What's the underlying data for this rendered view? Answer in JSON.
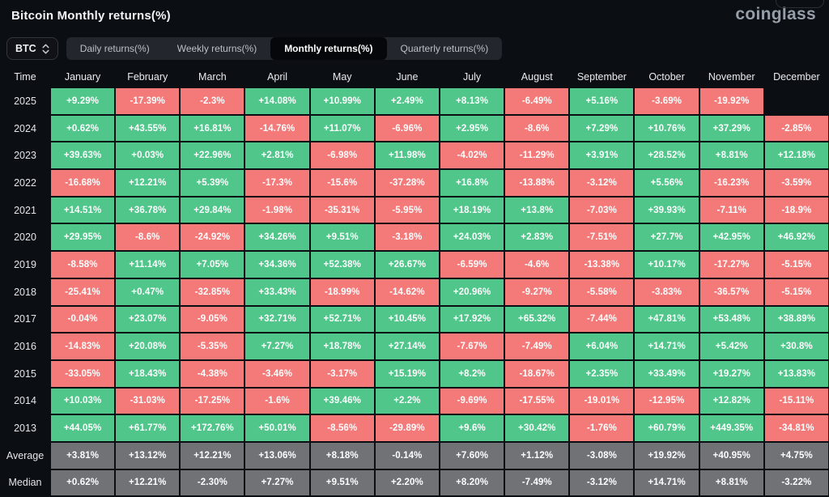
{
  "page": {
    "title": "Bitcoin Monthly returns(%)",
    "logo": "coinglass"
  },
  "controls": {
    "coin_selector": {
      "label": "BTC",
      "icon": "updown-chevron-icon"
    },
    "tabs": [
      {
        "label": "Daily returns(%)",
        "active": false
      },
      {
        "label": "Weekly returns(%)",
        "active": false
      },
      {
        "label": "Monthly returns(%)",
        "active": true
      },
      {
        "label": "Quarterly returns(%)",
        "active": false
      }
    ]
  },
  "colors": {
    "background": "#0b0e13",
    "positive": "#50c68a",
    "negative": "#f47a7a",
    "summary": "#707276"
  },
  "chart_data": {
    "type": "heatmap",
    "title": "Bitcoin Monthly returns(%)",
    "legend": "green cell = positive monthly return, red cell = negative monthly return, gray cell = summary row, blank = no data yet",
    "columns": [
      "Time",
      "January",
      "February",
      "March",
      "April",
      "May",
      "June",
      "July",
      "August",
      "September",
      "October",
      "November",
      "December"
    ],
    "rows": [
      {
        "label": "2025",
        "type": "year",
        "cells": [
          "+9.29%",
          "-17.39%",
          "-2.3%",
          "+14.08%",
          "+10.99%",
          "+2.49%",
          "+8.13%",
          "-6.49%",
          "+5.16%",
          "-3.69%",
          "-19.92%",
          ""
        ]
      },
      {
        "label": "2024",
        "type": "year",
        "cells": [
          "+0.62%",
          "+43.55%",
          "+16.81%",
          "-14.76%",
          "+11.07%",
          "-6.96%",
          "+2.95%",
          "-8.6%",
          "+7.29%",
          "+10.76%",
          "+37.29%",
          "-2.85%"
        ]
      },
      {
        "label": "2023",
        "type": "year",
        "cells": [
          "+39.63%",
          "+0.03%",
          "+22.96%",
          "+2.81%",
          "-6.98%",
          "+11.98%",
          "-4.02%",
          "-11.29%",
          "+3.91%",
          "+28.52%",
          "+8.81%",
          "+12.18%"
        ]
      },
      {
        "label": "2022",
        "type": "year",
        "cells": [
          "-16.68%",
          "+12.21%",
          "+5.39%",
          "-17.3%",
          "-15.6%",
          "-37.28%",
          "+16.8%",
          "-13.88%",
          "-3.12%",
          "+5.56%",
          "-16.23%",
          "-3.59%"
        ]
      },
      {
        "label": "2021",
        "type": "year",
        "cells": [
          "+14.51%",
          "+36.78%",
          "+29.84%",
          "-1.98%",
          "-35.31%",
          "-5.95%",
          "+18.19%",
          "+13.8%",
          "-7.03%",
          "+39.93%",
          "-7.11%",
          "-18.9%"
        ]
      },
      {
        "label": "2020",
        "type": "year",
        "cells": [
          "+29.95%",
          "-8.6%",
          "-24.92%",
          "+34.26%",
          "+9.51%",
          "-3.18%",
          "+24.03%",
          "+2.83%",
          "-7.51%",
          "+27.7%",
          "+42.95%",
          "+46.92%"
        ]
      },
      {
        "label": "2019",
        "type": "year",
        "cells": [
          "-8.58%",
          "+11.14%",
          "+7.05%",
          "+34.36%",
          "+52.38%",
          "+26.67%",
          "-6.59%",
          "-4.6%",
          "-13.38%",
          "+10.17%",
          "-17.27%",
          "-5.15%"
        ]
      },
      {
        "label": "2018",
        "type": "year",
        "cells": [
          "-25.41%",
          "+0.47%",
          "-32.85%",
          "+33.43%",
          "-18.99%",
          "-14.62%",
          "+20.96%",
          "-9.27%",
          "-5.58%",
          "-3.83%",
          "-36.57%",
          "-5.15%"
        ]
      },
      {
        "label": "2017",
        "type": "year",
        "cells": [
          "-0.04%",
          "+23.07%",
          "-9.05%",
          "+32.71%",
          "+52.71%",
          "+10.45%",
          "+17.92%",
          "+65.32%",
          "-7.44%",
          "+47.81%",
          "+53.48%",
          "+38.89%"
        ]
      },
      {
        "label": "2016",
        "type": "year",
        "cells": [
          "-14.83%",
          "+20.08%",
          "-5.35%",
          "+7.27%",
          "+18.78%",
          "+27.14%",
          "-7.67%",
          "-7.49%",
          "+6.04%",
          "+14.71%",
          "+5.42%",
          "+30.8%"
        ]
      },
      {
        "label": "2015",
        "type": "year",
        "cells": [
          "-33.05%",
          "+18.43%",
          "-4.38%",
          "-3.46%",
          "-3.17%",
          "+15.19%",
          "+8.2%",
          "-18.67%",
          "+2.35%",
          "+33.49%",
          "+19.27%",
          "+13.83%"
        ]
      },
      {
        "label": "2014",
        "type": "year",
        "cells": [
          "+10.03%",
          "-31.03%",
          "-17.25%",
          "-1.6%",
          "+39.46%",
          "+2.2%",
          "-9.69%",
          "-17.55%",
          "-19.01%",
          "-12.95%",
          "+12.82%",
          "-15.11%"
        ]
      },
      {
        "label": "2013",
        "type": "year",
        "cells": [
          "+44.05%",
          "+61.77%",
          "+172.76%",
          "+50.01%",
          "-8.56%",
          "-29.89%",
          "+9.6%",
          "+30.42%",
          "-1.76%",
          "+60.79%",
          "+449.35%",
          "-34.81%"
        ]
      },
      {
        "label": "Average",
        "type": "summary",
        "cells": [
          "+3.81%",
          "+13.12%",
          "+12.21%",
          "+13.06%",
          "+8.18%",
          "-0.14%",
          "+7.60%",
          "+1.12%",
          "-3.08%",
          "+19.92%",
          "+40.95%",
          "+4.75%"
        ]
      },
      {
        "label": "Median",
        "type": "summary",
        "cells": [
          "+0.62%",
          "+12.21%",
          "-2.30%",
          "+7.27%",
          "+9.51%",
          "+2.20%",
          "+8.20%",
          "-7.49%",
          "-3.12%",
          "+14.71%",
          "+8.81%",
          "-3.22%"
        ]
      }
    ]
  }
}
